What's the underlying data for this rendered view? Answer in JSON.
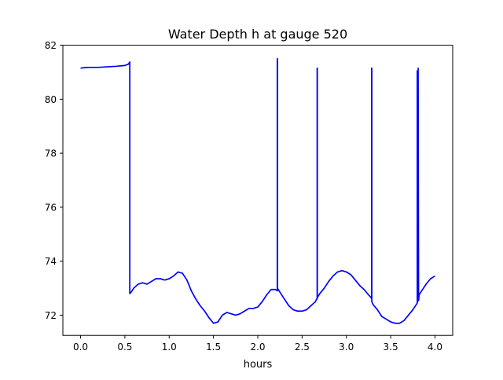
{
  "chart_data": {
    "type": "line",
    "title": "Water Depth h at gauge 520",
    "xlabel": "hours",
    "ylabel": "",
    "xlim": [
      -0.2,
      4.2
    ],
    "ylim": [
      71.25,
      82
    ],
    "xticks": [
      0.0,
      0.5,
      1.0,
      1.5,
      2.0,
      2.5,
      3.0,
      3.5,
      4.0
    ],
    "xtick_labels": [
      "0.0",
      "0.5",
      "1.0",
      "1.5",
      "2.0",
      "2.5",
      "3.0",
      "3.5",
      "4.0"
    ],
    "yticks": [
      72,
      74,
      76,
      78,
      80,
      82
    ],
    "ytick_labels": [
      "72",
      "74",
      "76",
      "78",
      "80",
      "82"
    ],
    "grid": false,
    "series": [
      {
        "color": "#0000ff",
        "x": [
          0.0,
          0.05,
          0.1,
          0.2,
          0.3,
          0.4,
          0.5,
          0.54,
          0.555,
          0.555,
          0.57,
          0.6,
          0.65,
          0.7,
          0.75,
          0.8,
          0.85,
          0.9,
          0.95,
          1.0,
          1.05,
          1.1,
          1.15,
          1.2,
          1.25,
          1.3,
          1.35,
          1.4,
          1.45,
          1.5,
          1.55,
          1.6,
          1.65,
          1.7,
          1.75,
          1.8,
          1.85,
          1.9,
          1.95,
          2.0,
          2.05,
          2.1,
          2.15,
          2.2,
          2.22,
          2.22,
          2.222,
          2.222,
          2.25,
          2.3,
          2.35,
          2.4,
          2.45,
          2.5,
          2.55,
          2.6,
          2.65,
          2.665,
          2.67,
          2.67,
          2.672,
          2.672,
          2.7,
          2.75,
          2.8,
          2.85,
          2.9,
          2.95,
          3.0,
          3.05,
          3.1,
          3.15,
          3.2,
          3.25,
          3.28,
          3.285,
          3.285,
          3.287,
          3.287,
          3.3,
          3.35,
          3.4,
          3.45,
          3.5,
          3.55,
          3.6,
          3.65,
          3.7,
          3.75,
          3.8,
          3.8,
          3.805,
          3.81,
          3.815,
          3.82,
          3.82,
          3.85,
          3.9,
          3.95,
          4.0
        ],
        "y": [
          81.15,
          81.17,
          81.18,
          81.18,
          81.2,
          81.22,
          81.25,
          81.3,
          81.38,
          72.8,
          72.85,
          73.0,
          73.15,
          73.2,
          73.15,
          73.25,
          73.35,
          73.35,
          73.3,
          73.35,
          73.45,
          73.6,
          73.55,
          73.3,
          72.9,
          72.6,
          72.35,
          72.15,
          71.9,
          71.7,
          71.75,
          72.0,
          72.1,
          72.05,
          72.0,
          72.05,
          72.15,
          72.25,
          72.25,
          72.3,
          72.5,
          72.75,
          72.95,
          72.95,
          72.9,
          81.5,
          81.5,
          73.0,
          72.85,
          72.6,
          72.35,
          72.2,
          72.15,
          72.15,
          72.2,
          72.35,
          72.5,
          72.6,
          72.6,
          81.15,
          81.15,
          72.65,
          72.8,
          73.0,
          73.25,
          73.45,
          73.6,
          73.65,
          73.6,
          73.5,
          73.3,
          73.1,
          72.95,
          72.75,
          72.65,
          72.6,
          81.15,
          81.15,
          72.5,
          72.4,
          72.2,
          71.95,
          71.85,
          71.75,
          71.7,
          71.7,
          71.8,
          72.0,
          72.2,
          72.45,
          81.05,
          72.5,
          81.15,
          72.55,
          72.7,
          72.75,
          72.9,
          73.15,
          73.35,
          73.45
        ]
      }
    ]
  }
}
